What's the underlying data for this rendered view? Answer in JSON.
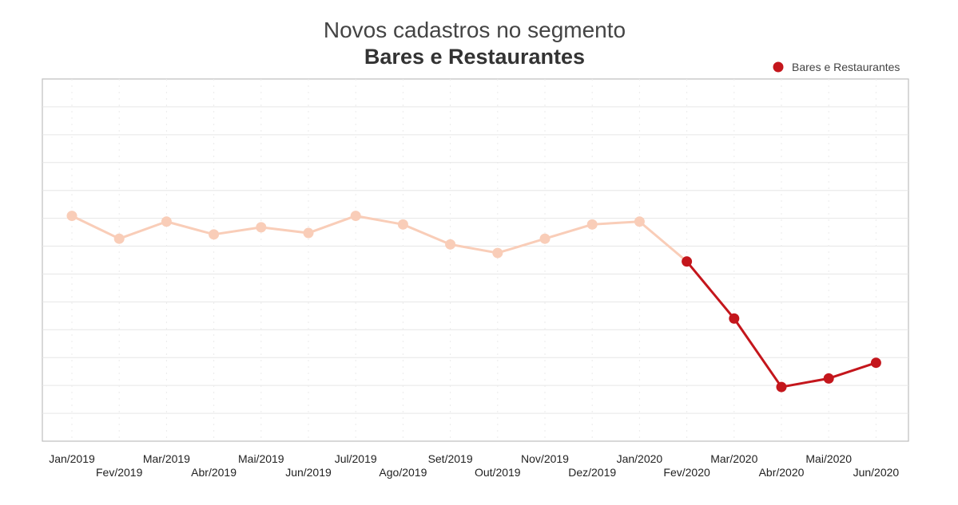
{
  "chart_data": {
    "type": "line",
    "title": "Novos cadastros no segmento",
    "subtitle": "Bares e Restaurantes",
    "xlabel": "",
    "ylabel": "",
    "legend": {
      "position": "top-right",
      "entries": [
        "Bares e Restaurantes"
      ]
    },
    "grid": {
      "horizontal": true,
      "vertical": true
    },
    "y_tick_labels_visible": false,
    "categories": [
      "Jan/2019",
      "Fev/2019",
      "Mar/2019",
      "Abr/2019",
      "Mai/2019",
      "Jun/2019",
      "Jul/2019",
      "Ago/2019",
      "Set/2019",
      "Out/2019",
      "Nov/2019",
      "Dez/2019",
      "Jan/2020",
      "Fev/2020",
      "Mar/2020",
      "Abr/2020",
      "Mai/2020",
      "Jun/2020"
    ],
    "ylim": [
      0,
      12.7
    ],
    "series": [
      {
        "name": "Bares e Restaurantes",
        "values": [
          7.9,
          7.1,
          7.7,
          7.25,
          7.5,
          7.3,
          7.9,
          7.6,
          6.9,
          6.6,
          7.1,
          7.6,
          7.7,
          6.3,
          4.3,
          1.9,
          2.2,
          2.75
        ],
        "highlight_from_index": 13
      }
    ],
    "colors": {
      "faded": "#f9cdb8",
      "highlight": "#c4161c",
      "grid": "#e6e6e6",
      "frame": "#bdbdbd"
    }
  }
}
